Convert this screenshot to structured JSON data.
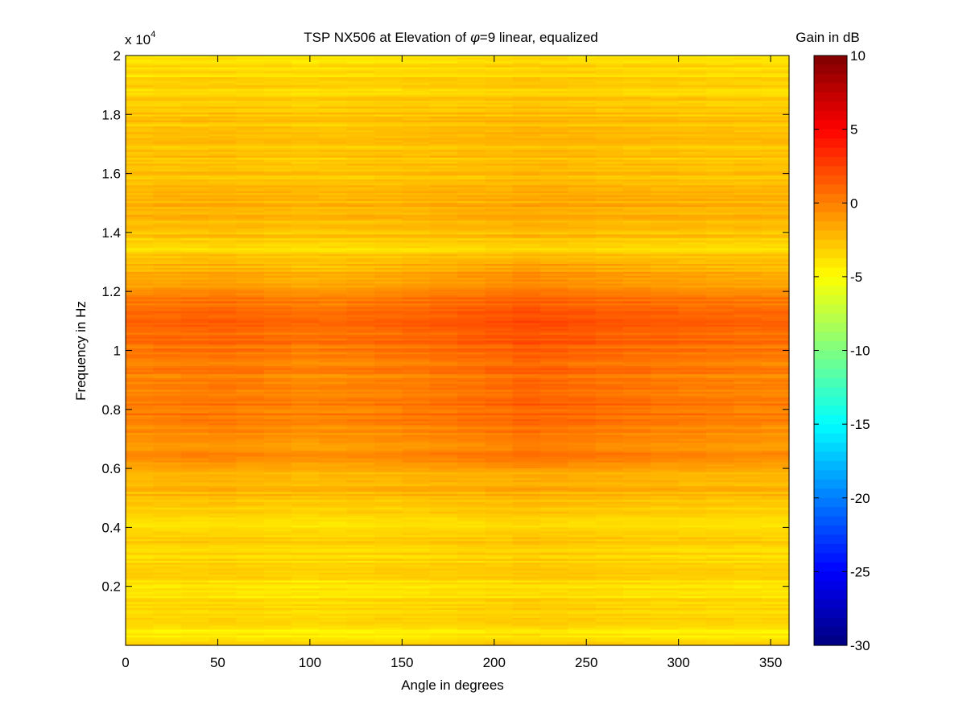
{
  "chart_data": {
    "type": "heatmap",
    "title_prefix": "TSP NX506 at Elevation of ",
    "title_symbol": "φ",
    "title_suffix": "=9 linear, equalized",
    "xlabel": "Angle in degrees",
    "ylabel": "Frequency in Hz",
    "xlim": [
      0,
      360
    ],
    "ylim": [
      0,
      20000
    ],
    "x_ticks": [
      0,
      50,
      100,
      150,
      200,
      250,
      300,
      350
    ],
    "x_tick_labels": [
      "0",
      "50",
      "100",
      "150",
      "200",
      "250",
      "300",
      "350"
    ],
    "y_ticks": [
      2000,
      4000,
      6000,
      8000,
      10000,
      12000,
      14000,
      16000,
      18000,
      20000
    ],
    "y_tick_labels": [
      "0.2",
      "0.4",
      "0.6",
      "0.8",
      "1",
      "1.2",
      "1.4",
      "1.6",
      "1.8",
      "2"
    ],
    "y_exponent_base": "x 10",
    "y_exponent_power": "4",
    "colorbar": {
      "label": "Gain in dB",
      "colormap": "jet",
      "clim": [
        -30,
        10
      ],
      "ticks": [
        10,
        5,
        0,
        -5,
        -10,
        -15,
        -20,
        -25,
        -30
      ],
      "tick_labels": [
        "10",
        "5",
        "0",
        "-5",
        "-10",
        "-15",
        "-20",
        "-25",
        "-30"
      ]
    },
    "gain_profile_freq_hz": [
      0,
      500,
      1000,
      2000,
      2500,
      3000,
      3500,
      4000,
      4500,
      5000,
      6000,
      6500,
      7000,
      8000,
      9000,
      10000,
      11000,
      11500,
      12000,
      12500,
      13000,
      13500,
      14000,
      15000,
      16000,
      17000,
      18000,
      19000,
      20000
    ],
    "gain_profile_db": [
      -3.5,
      -4.2,
      -3.8,
      -3.8,
      -3.4,
      -3.5,
      -3.2,
      -4.0,
      -3.0,
      -2.5,
      -1.8,
      -0.6,
      -0.8,
      0.2,
      -0.2,
      0.3,
      0.8,
      0.6,
      -0.5,
      -1.8,
      -2.4,
      -3.6,
      -2.6,
      -2.0,
      -2.8,
      -2.8,
      -2.7,
      -3.5,
      -4.0
    ],
    "angle_variation": {
      "angles_deg": [
        0,
        50,
        100,
        150,
        200,
        220,
        250,
        300,
        360
      ],
      "offset_db": [
        0.0,
        0.4,
        -0.2,
        0.2,
        0.8,
        1.2,
        0.8,
        0.3,
        0.0
      ]
    }
  }
}
